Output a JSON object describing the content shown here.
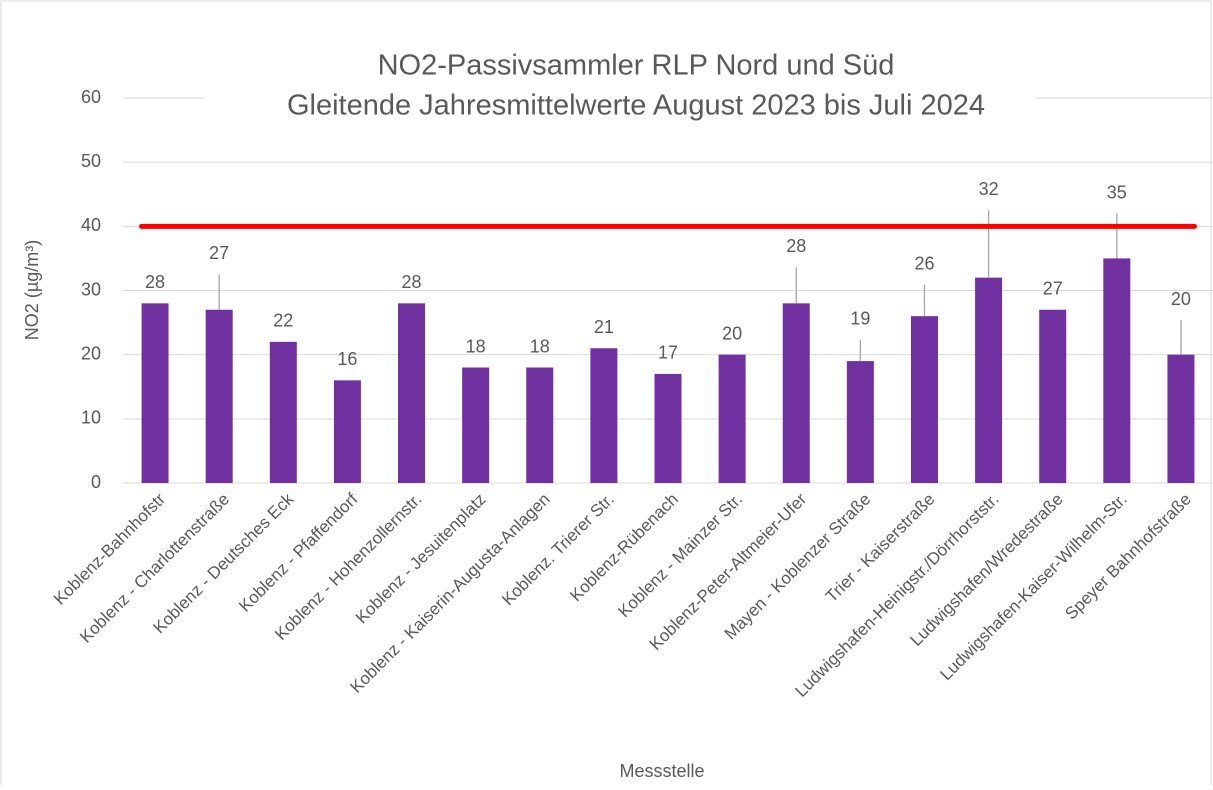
{
  "chart_data": {
    "type": "bar",
    "title": "NO2-Passivsammler RLP Nord und Süd",
    "subtitle": "Gleitende Jahresmittelwerte August 2023 bis Juli 2024",
    "y_label": "NO2 (µg/m³)",
    "x_label": "Messstelle",
    "categories": [
      "Koblenz-Bahnhofstr",
      "Koblenz - Charlottenstraße",
      "Koblenz - Deutsches Eck",
      "Koblenz - Pfaffendorf",
      "Koblenz - Hohenzollernstr.",
      "Koblenz - Jesuitenplatz",
      "Koblenz - Kaiserin-Augusta-Anlagen",
      "Koblenz. Trierer Str.",
      "Koblenz-Rübenach",
      "Koblenz - Mainzer Str.",
      "Koblenz-Peter-Altmeier-Ufer",
      "Mayen - Koblenzer Straße",
      "Trier - Kaiserstraße",
      "Ludwigshafen-Heinigstr./Dörrhorststr.",
      "Ludwigshafen/Wredestraße",
      "Ludwigshafen-Kaiser-Wilhelm-Str.",
      "Speyer Bahnhofstraße"
    ],
    "values": [
      28,
      27,
      22,
      16,
      28,
      18,
      18,
      21,
      17,
      20,
      28,
      19,
      26,
      32,
      27,
      35,
      20
    ],
    "errors": [
      null,
      5.5,
      null,
      null,
      null,
      null,
      null,
      null,
      null,
      null,
      5.6,
      3.3,
      4.9,
      10.5,
      null,
      7,
      5.4
    ],
    "color": "#7030a0",
    "error_color": "#a6a6a6",
    "limit_line": {
      "value": 40,
      "color": "#ff0000"
    },
    "ylim": [
      0,
      60
    ],
    "yticks": [
      0,
      10,
      20,
      30,
      40,
      50,
      60
    ],
    "grid": true
  }
}
